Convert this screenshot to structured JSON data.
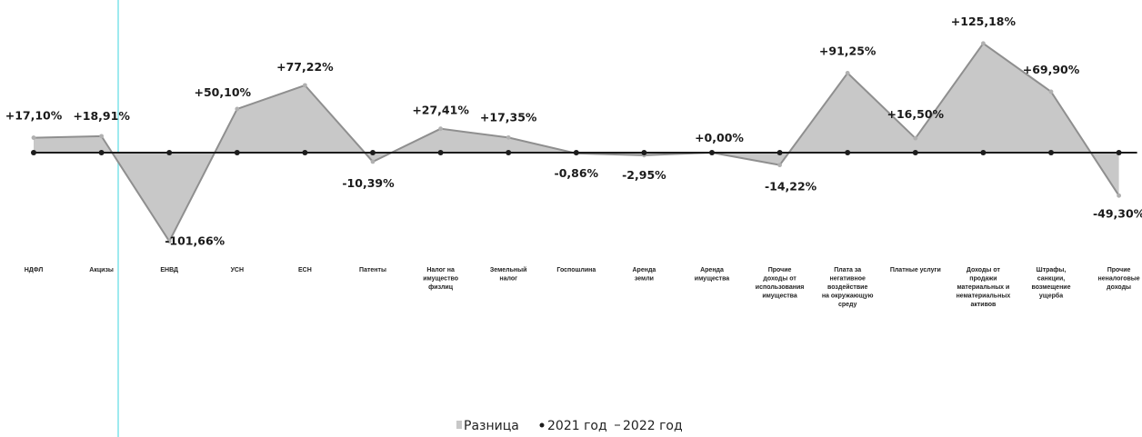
{
  "chart_data": {
    "type": "line",
    "title": "",
    "xlabel": "",
    "ylabel": "",
    "categories": [
      [
        "НДФЛ"
      ],
      [
        "Акцизы"
      ],
      [
        "ЕНВД"
      ],
      [
        "УСН"
      ],
      [
        "ЕСН"
      ],
      [
        "Патенты"
      ],
      [
        "Налог на",
        "имущество",
        "физлиц"
      ],
      [
        "Земельный",
        "налог"
      ],
      [
        "Госпошлина"
      ],
      [
        "Аренда",
        "земли"
      ],
      [
        "Аренда",
        "имущества"
      ],
      [
        "Прочие",
        "доходы от",
        "использования",
        "имущества"
      ],
      [
        "Плата за",
        "негативное",
        "воздействие",
        "на окружающую",
        "среду"
      ],
      [
        "Платные услуги"
      ],
      [
        "Доходы от",
        "продажи",
        "материальных и",
        "нематериальных",
        "активов"
      ],
      [
        "Штрафы,",
        "санкции,",
        "возмещение",
        "ущерба"
      ],
      [
        "Прочие",
        "неналоговые",
        "доходы"
      ]
    ],
    "values": [
      17.1,
      18.91,
      -101.66,
      50.1,
      77.22,
      -10.39,
      27.41,
      17.35,
      -0.86,
      -2.95,
      0.0,
      -14.22,
      91.25,
      16.5,
      125.18,
      69.9,
      -49.3
    ],
    "labels": [
      "+17,10%",
      "+18,91%",
      "-101,66%",
      "+50,10%",
      "+77,22%",
      "-10,39%",
      "+27,41%",
      "+17,35%",
      "-0,86%",
      "-2,95%",
      "+0,00%",
      "-14,22%",
      "+91,25%",
      "+16,50%",
      "+125,18%",
      "+69,90%",
      "-49,30%"
    ],
    "legend": {
      "position": "bottom",
      "items": [
        {
          "name": "Разница",
          "marker": "area"
        },
        {
          "name": "2021 год",
          "marker": "line-dot"
        },
        {
          "name": "2022 год",
          "marker": "line"
        }
      ]
    },
    "grid": false,
    "colors": {
      "area": "#c8c8c8",
      "line2022": "#8f8f8f",
      "line2021": "#1c1c1c",
      "guide": "#7fe3ea"
    }
  }
}
